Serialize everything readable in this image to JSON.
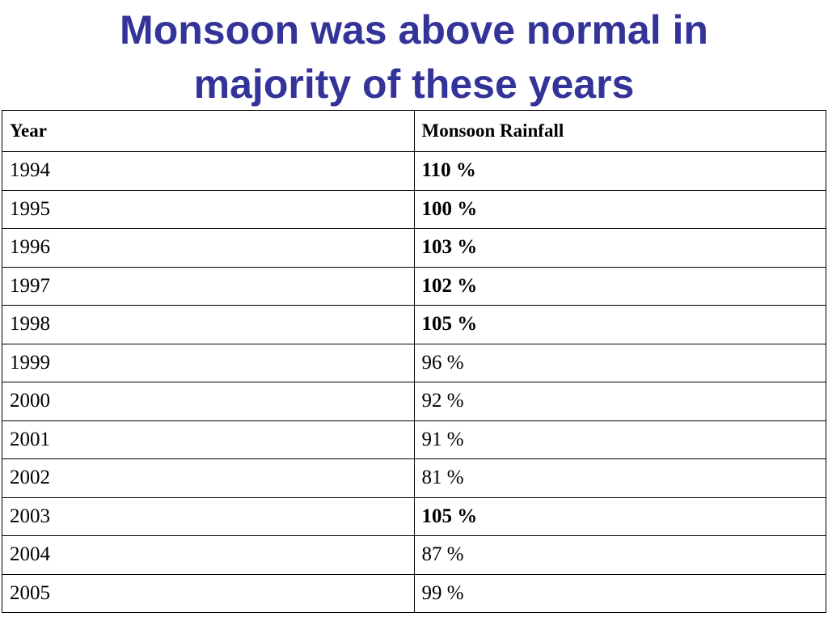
{
  "header": {
    "title": "Monsoon was above normal in majority of these years"
  },
  "table": {
    "columns": [
      "Year",
      "Monsoon Rainfall"
    ],
    "rows": [
      [
        "1994",
        "110 %"
      ],
      [
        "1995",
        "100 %"
      ],
      [
        "1996",
        "103 %"
      ],
      [
        "1997",
        "102 %"
      ],
      [
        "1998",
        "105 %"
      ],
      [
        "1999",
        "96 %"
      ],
      [
        "2000",
        "92 %"
      ],
      [
        "2001",
        "91 %"
      ],
      [
        "2002",
        "81 %"
      ],
      [
        "2003",
        "105 %"
      ],
      [
        "2004",
        "87 %"
      ],
      [
        "2005",
        "99 %"
      ]
    ]
  }
}
